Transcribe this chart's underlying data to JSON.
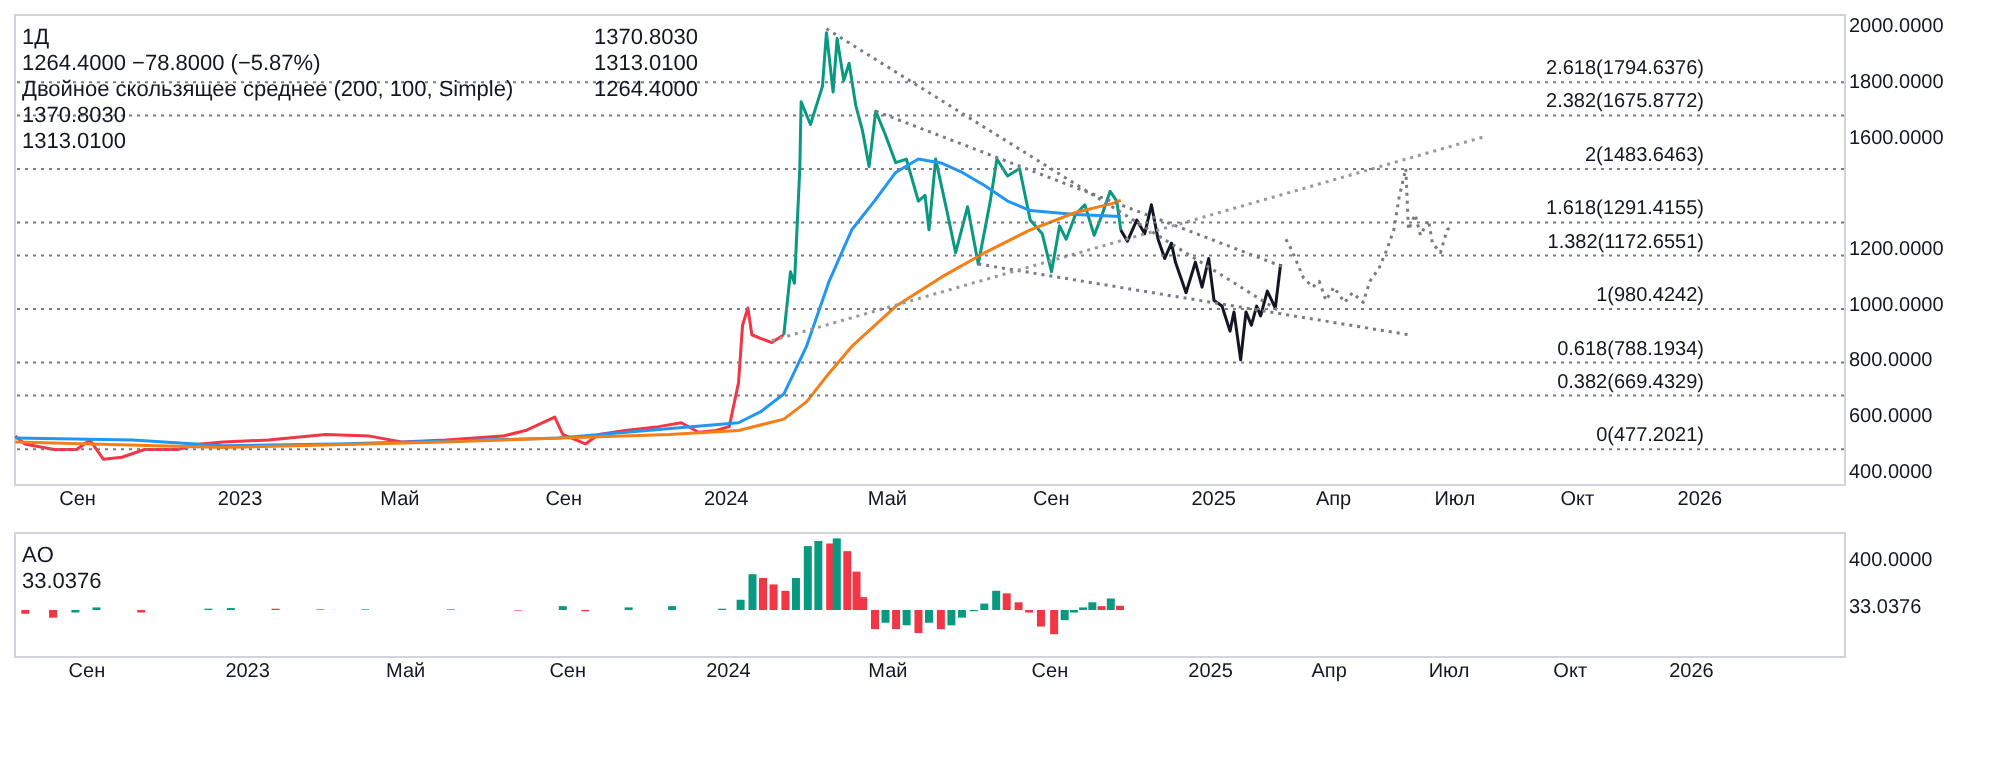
{
  "chart_data": [
    {
      "type": "line",
      "title": "1Д",
      "annotations": [
        "1264.4000 −78.8000 (−5.87%)",
        "Двойное скользящее среднее (200, 100, Simple)",
        "1370.8030",
        "1313.0100",
        "1370.8030",
        "1313.0100",
        "1264.4000"
      ],
      "xlim": [
        "2022-07-16",
        "2026-04-20"
      ],
      "xticks": [
        {
          "value": "2022-09-01",
          "label": "Сен"
        },
        {
          "value": "2023-01-01",
          "label": "2023"
        },
        {
          "value": "2023-05-01",
          "label": "Май"
        },
        {
          "value": "2023-09-01",
          "label": "Сен"
        },
        {
          "value": "2024-01-01",
          "label": "2024"
        },
        {
          "value": "2024-05-01",
          "label": "Май"
        },
        {
          "value": "2024-09-01",
          "label": "Сен"
        },
        {
          "value": "2025-01-01",
          "label": "2025"
        },
        {
          "value": "2025-04-01",
          "label": "Апр"
        },
        {
          "value": "2025-07-01",
          "label": "Июл"
        },
        {
          "value": "2025-10-01",
          "label": "Окт"
        },
        {
          "value": "2026-01-01",
          "label": "2026"
        }
      ],
      "ylim": [
        352,
        2040
      ],
      "yticks": [
        {
          "value": 400,
          "label": "400.0000"
        },
        {
          "value": 600,
          "label": "600.0000"
        },
        {
          "value": 800,
          "label": "800.0000"
        },
        {
          "value": 1000,
          "label": "1000.0000"
        },
        {
          "value": 1200,
          "label": "1200.0000"
        },
        {
          "value": 1600,
          "label": "1600.0000"
        },
        {
          "value": 1800,
          "label": "1800.0000"
        },
        {
          "value": 2000,
          "label": "2000.0000"
        }
      ],
      "ref_lines": [
        {
          "axis": "y",
          "value": 1794.6376,
          "label": "2.618(1794.6376)",
          "color": "#787b86",
          "line_style": "dotted"
        },
        {
          "axis": "y",
          "value": 1675.8772,
          "label": "2.382(1675.8772)",
          "color": "#787b86",
          "line_style": "dotted"
        },
        {
          "axis": "y",
          "value": 1483.6463,
          "label": "2(1483.6463)",
          "color": "#787b86",
          "line_style": "dotted"
        },
        {
          "axis": "y",
          "value": 1291.4155,
          "label": "1.618(1291.4155)",
          "color": "#787b86",
          "line_style": "dotted"
        },
        {
          "axis": "y",
          "value": 1172.6551,
          "label": "1.382(1172.6551)",
          "color": "#787b86",
          "line_style": "dotted"
        },
        {
          "axis": "y",
          "value": 980.4242,
          "label": "1(980.4242)",
          "color": "#787b86",
          "line_style": "dotted"
        },
        {
          "axis": "y",
          "value": 788.1934,
          "label": "0.618(788.1934)",
          "color": "#787b86",
          "line_style": "dotted"
        },
        {
          "axis": "y",
          "value": 669.4329,
          "label": "0.382(669.4329)",
          "color": "#787b86",
          "line_style": "dotted"
        },
        {
          "axis": "y",
          "value": 477.2021,
          "label": "0(477.2021)",
          "color": "#787b86",
          "line_style": "dotted"
        }
      ],
      "series": [
        {
          "type": "line",
          "color": "#f23645",
          "line_style": "solid",
          "x": [
            "2022-07-17",
            "2022-07-24",
            "2022-08-15",
            "2022-09-01",
            "2022-09-11",
            "2022-09-21",
            "2022-10-05",
            "2022-10-22",
            "2022-11-16",
            "2022-12-03",
            "2022-12-20",
            "2023-01-23",
            "2023-03-07",
            "2023-04-09",
            "2023-05-03",
            "2023-06-05",
            "2023-07-18",
            "2023-08-04",
            "2023-08-26",
            "2023-09-01",
            "2023-09-18",
            "2023-09-28",
            "2023-10-18",
            "2023-11-12",
            "2023-11-29",
            "2023-12-12",
            "2023-12-25",
            "2024-01-04",
            "2024-01-11",
            "2024-01-14",
            "2024-01-18",
            "2024-01-21",
            "2024-01-28",
            "2024-02-05",
            "2024-02-14"
          ],
          "values": [
            524,
            496,
            476,
            476,
            510,
            441,
            448,
            476,
            476,
            496,
            503,
            510,
            530,
            524,
            503,
            510,
            524,
            544,
            592,
            530,
            496,
            530,
            544,
            558,
            572,
            538,
            544,
            558,
            716,
            922,
            984,
            888,
            874,
            860,
            888
          ]
        },
        {
          "type": "line",
          "color": "#089981",
          "line_style": "solid",
          "x": [
            "2024-02-14",
            "2024-02-19",
            "2024-02-22",
            "2024-02-26",
            "2024-02-27",
            "2024-03-05",
            "2024-03-14",
            "2024-03-17",
            "2024-03-22",
            "2024-03-25",
            "2024-03-30",
            "2024-04-03",
            "2024-04-08",
            "2024-04-13",
            "2024-04-18",
            "2024-04-23",
            "2024-04-30",
            "2024-05-08",
            "2024-05-16",
            "2024-05-25",
            "2024-05-30",
            "2024-06-02",
            "2024-06-07",
            "2024-06-16",
            "2024-06-22",
            "2024-07-01",
            "2024-07-09",
            "2024-07-18",
            "2024-07-23",
            "2024-07-31",
            "2024-08-09",
            "2024-08-17",
            "2024-08-26",
            "2024-09-02",
            "2024-09-08",
            "2024-09-13",
            "2024-09-20",
            "2024-09-27",
            "2024-10-04",
            "2024-10-10",
            "2024-10-16",
            "2024-10-21",
            "2024-10-24"
          ],
          "values": [
            888,
            1114,
            1073,
            1485,
            1725,
            1643,
            1780,
            1973,
            1760,
            1952,
            1801,
            1863,
            1712,
            1622,
            1492,
            1691,
            1609,
            1506,
            1519,
            1368,
            1389,
            1265,
            1519,
            1320,
            1183,
            1348,
            1142,
            1368,
            1519,
            1458,
            1485,
            1300,
            1251,
            1114,
            1279,
            1231,
            1320,
            1355,
            1245,
            1320,
            1403,
            1368,
            1264.4
          ]
        },
        {
          "type": "line",
          "color": "#2196f3",
          "line_style": "solid",
          "x": [
            "2022-07-17",
            "2022-10-13",
            "2022-12-20",
            "2023-03-15",
            "2023-08-29",
            "2024-01-11",
            "2024-01-28",
            "2024-02-14",
            "2024-03-02",
            "2024-03-19",
            "2024-04-05",
            "2024-04-22",
            "2024-05-08",
            "2024-05-25",
            "2024-06-11",
            "2024-06-27",
            "2024-07-14",
            "2024-07-31",
            "2024-08-17",
            "2024-09-20",
            "2024-10-24"
          ],
          "values": [
            517,
            510,
            489,
            496,
            517,
            572,
            613,
            675,
            846,
            1080,
            1265,
            1368,
            1471,
            1519,
            1505,
            1471,
            1423,
            1368,
            1334,
            1320,
            1313.01
          ]
        },
        {
          "type": "line",
          "color": "#f57f17",
          "line_style": "solid",
          "x": [
            "2022-07-17",
            "2022-12-20",
            "2023-06-05",
            "2023-11-20",
            "2024-01-11",
            "2024-02-14",
            "2024-03-02",
            "2024-03-19",
            "2024-04-05",
            "2024-05-08",
            "2024-06-11",
            "2024-07-14",
            "2024-08-17",
            "2024-09-20",
            "2024-10-18",
            "2024-10-24"
          ],
          "values": [
            503,
            483,
            503,
            530,
            544,
            585,
            647,
            750,
            846,
            990,
            1094,
            1183,
            1265,
            1327,
            1360,
            1370.803
          ]
        },
        {
          "type": "line",
          "color": "#131722",
          "line_style": "solid",
          "x": [
            "2024-10-24",
            "2024-10-29",
            "2024-11-05",
            "2024-11-11",
            "2024-11-16",
            "2024-11-21",
            "2024-11-26",
            "2024-12-01",
            "2024-12-04",
            "2024-12-12",
            "2024-12-19",
            "2024-12-24",
            "2024-12-29",
            "2025-01-02",
            "2025-01-08",
            "2025-01-14",
            "2025-01-17",
            "2025-01-22",
            "2025-01-26",
            "2025-01-30",
            "2025-02-03",
            "2025-02-06",
            "2025-02-11",
            "2025-02-17",
            "2025-02-21"
          ],
          "values": [
            1264.4,
            1224,
            1300,
            1251,
            1355,
            1231,
            1162,
            1217,
            1149,
            1039,
            1149,
            1059,
            1162,
            1011,
            991,
            901,
            970,
            798,
            970,
            922,
            991,
            956,
            1045,
            984,
            1142
          ]
        },
        {
          "type": "line",
          "color": "#787b86",
          "line_style": "dotted",
          "x": [
            "2025-02-25",
            "2025-03-01",
            "2025-03-10",
            "2025-03-17",
            "2025-03-22",
            "2025-03-27",
            "2025-04-02",
            "2025-04-10",
            "2025-04-16",
            "2025-04-24",
            "2025-04-29",
            "2025-05-06",
            "2025-05-12",
            "2025-05-17",
            "2025-05-21",
            "2025-05-26",
            "2025-05-28",
            "2025-06-02",
            "2025-06-06",
            "2025-06-12",
            "2025-06-15",
            "2025-06-21",
            "2025-06-26",
            "2025-06-30"
          ],
          "values": [
            1231,
            1196,
            1094,
            1059,
            1080,
            1011,
            1059,
            1004,
            1039,
            1004,
            1080,
            1128,
            1196,
            1265,
            1382,
            1485,
            1265,
            1320,
            1245,
            1300,
            1217,
            1183,
            1265,
            1279
          ]
        },
        {
          "type": "line",
          "color": "#787b86",
          "line_style": "dotted",
          "x": [
            "2024-03-17",
            "2025-02-21"
          ],
          "values": [
            1987,
            970
          ]
        },
        {
          "type": "line",
          "color": "#787b86",
          "line_style": "dotted",
          "x": [
            "2024-04-23",
            "2025-02-25"
          ],
          "values": [
            1691,
            1128
          ]
        },
        {
          "type": "line",
          "color": "#787b86",
          "line_style": "dotted",
          "x": [
            "2024-07-09",
            "2025-05-28"
          ],
          "values": [
            1142,
            888
          ]
        },
        {
          "type": "line",
          "color": "#9598a1",
          "line_style": "dotted",
          "x": [
            "2024-02-05",
            "2025-07-26"
          ],
          "values": [
            867,
            1602
          ]
        }
      ]
    },
    {
      "type": "bar",
      "title": "AO",
      "annotations": [
        "33.0376"
      ],
      "xlim": [
        "2022-07-16",
        "2026-04-20"
      ],
      "xticks": [
        {
          "value": "2022-09-01",
          "label": "Сен"
        },
        {
          "value": "2023-01-01",
          "label": "2023"
        },
        {
          "value": "2023-05-01",
          "label": "Май"
        },
        {
          "value": "2023-09-01",
          "label": "Сен"
        },
        {
          "value": "2024-01-01",
          "label": "2024"
        },
        {
          "value": "2024-05-01",
          "label": "Май"
        },
        {
          "value": "2024-09-01",
          "label": "Сен"
        },
        {
          "value": "2025-01-01",
          "label": "2025"
        },
        {
          "value": "2025-04-01",
          "label": "Апр"
        },
        {
          "value": "2025-07-01",
          "label": "Июл"
        },
        {
          "value": "2025-10-01",
          "label": "Окт"
        },
        {
          "value": "2026-01-01",
          "label": "2026"
        }
      ],
      "ylim": [
        -360,
        610
      ],
      "yticks": [
        {
          "value": 33.0376,
          "label": "33.0376"
        },
        {
          "value": 400,
          "label": "400.0000"
        }
      ],
      "x": [
        "2022-07-17",
        "2022-08-07",
        "2022-08-24",
        "2022-09-09",
        "2022-09-26",
        "2022-10-13",
        "2022-10-30",
        "2022-12-03",
        "2022-12-20",
        "2023-01-23",
        "2023-02-26",
        "2023-04-01",
        "2023-05-03",
        "2023-06-05",
        "2023-07-26",
        "2023-08-29",
        "2023-09-15",
        "2023-10-18",
        "2023-11-20",
        "2023-12-16",
        "2023-12-28",
        "2024-01-11",
        "2024-01-20",
        "2024-01-28",
        "2024-02-05",
        "2024-02-14",
        "2024-02-22",
        "2024-03-02",
        "2024-03-10",
        "2024-03-19",
        "2024-03-24",
        "2024-04-01",
        "2024-04-08",
        "2024-04-13",
        "2024-04-22",
        "2024-04-30",
        "2024-05-08",
        "2024-05-16",
        "2024-05-25",
        "2024-06-02",
        "2024-06-11",
        "2024-06-19",
        "2024-06-27",
        "2024-07-06",
        "2024-07-14",
        "2024-07-23",
        "2024-07-31",
        "2024-08-09",
        "2024-08-17",
        "2024-08-26",
        "2024-09-05",
        "2024-09-13",
        "2024-09-20",
        "2024-09-27",
        "2024-10-04",
        "2024-10-11",
        "2024-10-18",
        "2024-10-25"
      ],
      "values": [
        -30,
        -60,
        -20,
        20,
        0,
        -20,
        0,
        10,
        15,
        10,
        5,
        5,
        0,
        5,
        -5,
        30,
        -10,
        20,
        30,
        0,
        10,
        80,
        280,
        250,
        200,
        150,
        250,
        500,
        540,
        520,
        560,
        460,
        300,
        100,
        -150,
        -100,
        -150,
        -120,
        -180,
        -100,
        -150,
        -120,
        -60,
        -10,
        50,
        150,
        130,
        60,
        -20,
        -130,
        -190,
        -80,
        -20,
        20,
        60,
        30,
        90,
        33.0376
      ],
      "colors": [
        "#f23645",
        "#f23645",
        "#089981",
        "#089981",
        "#f23645",
        "#f23645",
        "#089981",
        "#089981",
        "#089981",
        "#f23645",
        "#f23645",
        "#089981",
        "#f23645",
        "#089981",
        "#f23645",
        "#089981",
        "#f23645",
        "#089981",
        "#089981",
        "#f23645",
        "#089981",
        "#089981",
        "#089981",
        "#f23645",
        "#f23645",
        "#f23645",
        "#089981",
        "#089981",
        "#089981",
        "#f23645",
        "#089981",
        "#f23645",
        "#f23645",
        "#f23645",
        "#f23645",
        "#089981",
        "#f23645",
        "#089981",
        "#f23645",
        "#089981",
        "#f23645",
        "#089981",
        "#089981",
        "#089981",
        "#089981",
        "#089981",
        "#f23645",
        "#f23645",
        "#f23645",
        "#f23645",
        "#f23645",
        "#089981",
        "#089981",
        "#089981",
        "#089981",
        "#f23645",
        "#089981",
        "#f23645"
      ]
    }
  ]
}
